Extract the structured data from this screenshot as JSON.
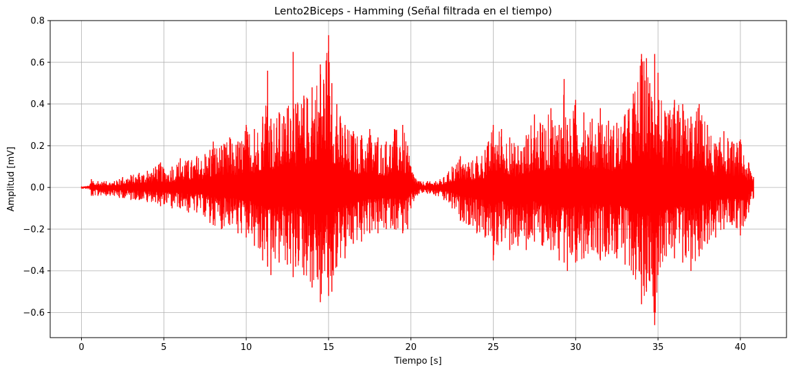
{
  "chart_data": {
    "type": "line",
    "title": "Lento2Biceps - Hamming (Señal filtrada en el tiempo)",
    "xlabel": "Tiempo [s]",
    "ylabel": "Amplitud [mV]",
    "xlim": [
      -1.9,
      42.8
    ],
    "ylim": [
      -0.72,
      0.8
    ],
    "x_ticks": [
      0,
      5,
      10,
      15,
      20,
      25,
      30,
      35,
      40
    ],
    "x_tick_labels": [
      "0",
      "5",
      "10",
      "15",
      "20",
      "25",
      "30",
      "35",
      "40"
    ],
    "y_ticks": [
      -0.6,
      -0.4,
      -0.2,
      0.0,
      0.2,
      0.4,
      0.6,
      0.8
    ],
    "y_tick_labels": [
      "−0.6",
      "−0.4",
      "−0.2",
      "0.0",
      "0.2",
      "0.4",
      "0.6",
      "0.8"
    ],
    "grid": true,
    "color": "#ff0000",
    "series": [
      {
        "x": [
          0,
          0.5,
          0.6,
          0.7,
          1.0,
          1.5,
          2.0,
          2.3,
          2.5,
          3.0,
          3.5,
          4.0,
          4.5,
          4.8,
          5.0,
          5.5,
          6.0,
          6.5,
          7.0,
          7.5,
          7.8,
          8.0,
          8.5,
          9.0,
          9.5,
          10.0,
          10.5,
          11.0,
          11.3,
          11.5,
          12.0,
          12.5,
          12.85,
          13.0,
          13.5,
          14.0,
          14.5,
          15.0,
          15.2,
          15.5,
          16.0,
          16.5,
          17.0,
          17.5,
          18.0,
          18.5,
          19.0,
          19.5,
          19.8,
          20.0,
          20.5,
          21.0,
          21.5,
          22.0,
          22.5,
          23.0,
          23.5,
          24.0,
          24.5,
          25.0,
          25.5,
          26.0,
          26.5,
          27.0,
          27.5,
          28.0,
          28.5,
          29.0,
          29.3,
          29.5,
          30.0,
          30.5,
          31.0,
          31.5,
          32.0,
          32.5,
          33.0,
          33.5,
          34.0,
          34.3,
          34.5,
          34.8,
          35.0,
          35.5,
          36.0,
          36.5,
          37.0,
          37.5,
          38.0,
          38.5,
          39.0,
          39.5,
          40.0,
          40.5,
          40.8
        ],
        "upper": [
          0.005,
          0.01,
          0.04,
          0.03,
          0.03,
          0.03,
          0.03,
          0.04,
          0.05,
          0.06,
          0.07,
          0.08,
          0.1,
          0.12,
          0.09,
          0.1,
          0.14,
          0.13,
          0.15,
          0.16,
          0.18,
          0.22,
          0.2,
          0.24,
          0.22,
          0.3,
          0.28,
          0.34,
          0.56,
          0.33,
          0.36,
          0.38,
          0.65,
          0.4,
          0.44,
          0.48,
          0.59,
          0.73,
          0.5,
          0.4,
          0.3,
          0.27,
          0.25,
          0.28,
          0.24,
          0.22,
          0.28,
          0.3,
          0.2,
          0.1,
          0.03,
          0.03,
          0.03,
          0.05,
          0.1,
          0.15,
          0.12,
          0.15,
          0.18,
          0.3,
          0.28,
          0.24,
          0.2,
          0.25,
          0.35,
          0.3,
          0.38,
          0.3,
          0.52,
          0.3,
          0.42,
          0.36,
          0.33,
          0.38,
          0.32,
          0.31,
          0.35,
          0.45,
          0.64,
          0.62,
          0.5,
          0.64,
          0.55,
          0.34,
          0.42,
          0.4,
          0.34,
          0.4,
          0.3,
          0.21,
          0.27,
          0.22,
          0.23,
          0.12,
          0.05
        ],
        "lower": [
          -0.005,
          -0.01,
          -0.04,
          -0.04,
          -0.04,
          -0.04,
          -0.04,
          -0.05,
          -0.05,
          -0.06,
          -0.06,
          -0.07,
          -0.07,
          -0.09,
          -0.08,
          -0.1,
          -0.1,
          -0.12,
          -0.12,
          -0.14,
          -0.17,
          -0.18,
          -0.2,
          -0.18,
          -0.22,
          -0.24,
          -0.28,
          -0.35,
          -0.38,
          -0.42,
          -0.36,
          -0.37,
          -0.43,
          -0.38,
          -0.42,
          -0.48,
          -0.55,
          -0.52,
          -0.5,
          -0.38,
          -0.34,
          -0.27,
          -0.26,
          -0.22,
          -0.22,
          -0.2,
          -0.2,
          -0.22,
          -0.2,
          -0.1,
          -0.03,
          -0.03,
          -0.04,
          -0.06,
          -0.1,
          -0.16,
          -0.18,
          -0.22,
          -0.24,
          -0.35,
          -0.26,
          -0.3,
          -0.28,
          -0.3,
          -0.26,
          -0.28,
          -0.3,
          -0.35,
          -0.36,
          -0.4,
          -0.36,
          -0.34,
          -0.3,
          -0.35,
          -0.32,
          -0.34,
          -0.37,
          -0.42,
          -0.56,
          -0.5,
          -0.45,
          -0.66,
          -0.42,
          -0.33,
          -0.34,
          -0.36,
          -0.4,
          -0.33,
          -0.27,
          -0.24,
          -0.2,
          -0.18,
          -0.23,
          -0.12,
          -0.05
        ]
      }
    ]
  }
}
